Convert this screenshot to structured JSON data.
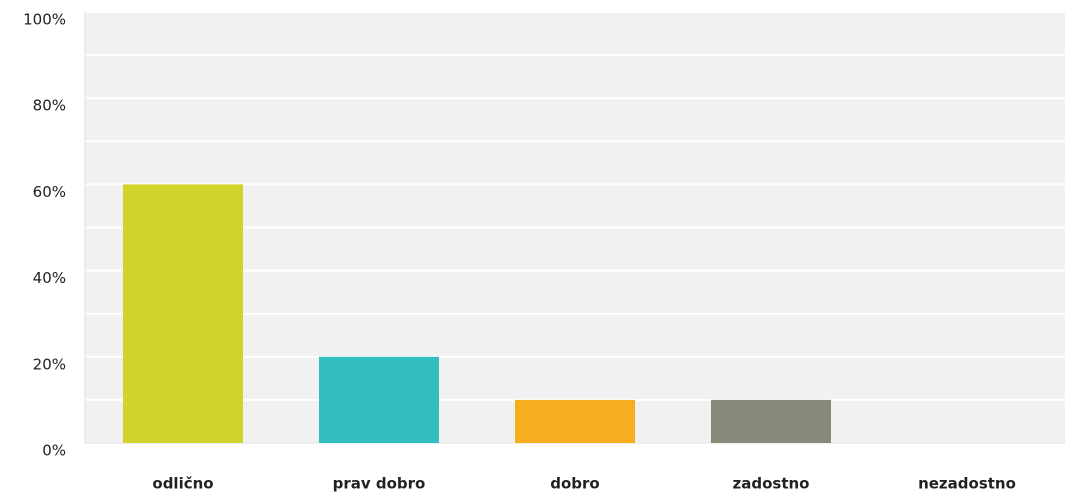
{
  "chart_data": {
    "type": "bar",
    "categories": [
      "odlično",
      "prav dobro",
      "dobro",
      "zadostno",
      "nezadostno"
    ],
    "values": [
      60,
      20,
      10,
      10,
      0
    ],
    "colors": [
      "#d0d42a",
      "#33bdbf",
      "#f6ae1f",
      "#888a79",
      null
    ],
    "ylim": [
      0,
      100
    ],
    "yticks": [
      {
        "value": 0,
        "label": "0%"
      },
      {
        "value": 20,
        "label": "20%"
      },
      {
        "value": 40,
        "label": "40%"
      },
      {
        "value": 60,
        "label": "60%"
      },
      {
        "value": 80,
        "label": "80%"
      },
      {
        "value": 100,
        "label": "100%"
      }
    ],
    "minor_yticks": [
      10,
      30,
      50,
      70,
      90
    ],
    "grid": true
  }
}
